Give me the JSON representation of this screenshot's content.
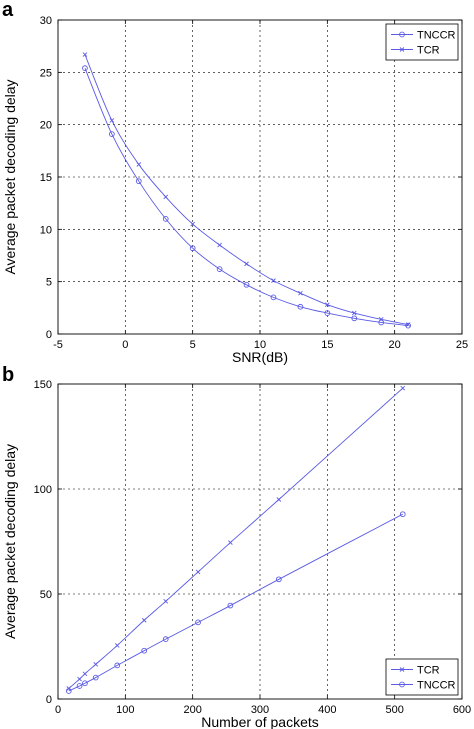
{
  "colors": {
    "series": "#5a5ae6",
    "axis": "#000000",
    "background": "#ffffff"
  },
  "chart_data": [
    {
      "panel": "a",
      "type": "line",
      "title": "",
      "xlabel": "SNR(dB)",
      "ylabel": "Average packet decoding delay",
      "xlim": [
        -5,
        25
      ],
      "ylim": [
        0,
        30
      ],
      "xticks": [
        -5,
        0,
        5,
        10,
        15,
        20,
        25
      ],
      "yticks": [
        0,
        5,
        10,
        15,
        20,
        25,
        30
      ],
      "grid": true,
      "legend_position": "top-right",
      "series": [
        {
          "name": "TNCCR",
          "marker": "circle",
          "x": [
            -3,
            -1,
            1,
            3,
            5,
            7,
            9,
            11,
            13,
            15,
            17,
            19,
            21
          ],
          "y": [
            25.4,
            19.1,
            14.6,
            11.0,
            8.2,
            6.2,
            4.7,
            3.5,
            2.6,
            2.0,
            1.5,
            1.1,
            0.8
          ]
        },
        {
          "name": "TCR",
          "marker": "x",
          "x": [
            -3,
            -1,
            1,
            3,
            5,
            7,
            9,
            11,
            13,
            15,
            17,
            19,
            21
          ],
          "y": [
            26.7,
            20.4,
            16.2,
            13.1,
            10.5,
            8.5,
            6.7,
            5.1,
            3.9,
            2.8,
            2.0,
            1.4,
            0.9
          ]
        }
      ]
    },
    {
      "panel": "b",
      "type": "line",
      "title": "",
      "xlabel": "Number of packets",
      "ylabel": "Average packet decoding delay",
      "xlim": [
        0,
        600
      ],
      "ylim": [
        0,
        150
      ],
      "xticks": [
        0,
        100,
        200,
        300,
        400,
        500,
        600
      ],
      "yticks": [
        0,
        50,
        100,
        150
      ],
      "grid": true,
      "legend_position": "bottom-right",
      "series": [
        {
          "name": "TCR",
          "marker": "x",
          "x": [
            16,
            32,
            40,
            56,
            88,
            128,
            160,
            208,
            256,
            328,
            512
          ],
          "y": [
            5.0,
            9.5,
            12.0,
            16.5,
            25.5,
            37.5,
            46.5,
            60.5,
            74.5,
            95.0,
            148.0
          ]
        },
        {
          "name": "TNCCR",
          "marker": "circle",
          "x": [
            16,
            32,
            40,
            56,
            88,
            128,
            160,
            208,
            256,
            328,
            512
          ],
          "y": [
            3.8,
            6.2,
            7.5,
            10.2,
            16.0,
            23.0,
            28.5,
            36.5,
            44.5,
            57.0,
            88.0
          ]
        }
      ]
    }
  ]
}
